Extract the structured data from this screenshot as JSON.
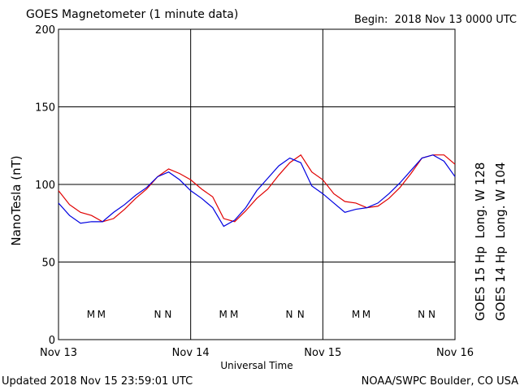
{
  "chart_data": {
    "type": "line",
    "title": "GOES Magnetometer (1 minute data)",
    "subtitle": "Begin:  2018 Nov 13 0000 UTC",
    "x_label": "Universal Time",
    "y_label": "NanoTesla (nT)",
    "footer_left": "Updated 2018 Nov 15 23:59:01 UTC",
    "footer_right": "NOAA/SWPC Boulder, CO USA",
    "x": [
      0,
      2,
      4,
      6,
      8,
      10,
      12,
      14,
      16,
      18,
      20,
      22,
      24,
      26,
      28,
      30,
      32,
      34,
      36,
      38,
      40,
      42,
      44,
      46,
      48,
      50,
      52,
      54,
      56,
      58,
      60,
      62,
      64,
      66,
      68,
      70,
      72
    ],
    "xlim": [
      0,
      72
    ],
    "xticks": [
      {
        "value": 0,
        "label": "Nov 13"
      },
      {
        "value": 24,
        "label": "Nov 14"
      },
      {
        "value": 48,
        "label": "Nov 15"
      },
      {
        "value": 72,
        "label": "Nov 16"
      }
    ],
    "ylim": [
      0,
      200
    ],
    "yticks": [
      0,
      50,
      100,
      150,
      200
    ],
    "grid": true,
    "series": [
      {
        "name": "GOES 15 Hp  Long. W 128",
        "color": "#e00000",
        "values": [
          96,
          87,
          82,
          80,
          76,
          78,
          84,
          91,
          97,
          105,
          110,
          107,
          103,
          97,
          92,
          78,
          76,
          83,
          91,
          97,
          106,
          114,
          119,
          108,
          103,
          94,
          89,
          88,
          85,
          86,
          91,
          98,
          107,
          117,
          119,
          119,
          113
        ]
      },
      {
        "name": "GOES 14 Hp  Long. W 104",
        "color": "#0000e0",
        "values": [
          88,
          80,
          75,
          76,
          76,
          82,
          87,
          93,
          98,
          105,
          108,
          103,
          96,
          91,
          85,
          73,
          77,
          85,
          96,
          104,
          112,
          117,
          114,
          99,
          94,
          88,
          82,
          84,
          85,
          88,
          94,
          101,
          109,
          117,
          119,
          115,
          105
        ]
      }
    ],
    "markers": [
      {
        "label": "M",
        "x": 5.9,
        "color": "#0000e0"
      },
      {
        "label": "M",
        "x": 7.8,
        "color": "#e00000"
      },
      {
        "label": "N",
        "x": 18.0,
        "color": "#0000e0"
      },
      {
        "label": "N",
        "x": 19.9,
        "color": "#e00000"
      },
      {
        "label": "M",
        "x": 29.9,
        "color": "#0000e0"
      },
      {
        "label": "M",
        "x": 31.9,
        "color": "#e00000"
      },
      {
        "label": "N",
        "x": 41.9,
        "color": "#0000e0"
      },
      {
        "label": "N",
        "x": 44.0,
        "color": "#e00000"
      },
      {
        "label": "M",
        "x": 54.0,
        "color": "#0000e0"
      },
      {
        "label": "M",
        "x": 55.9,
        "color": "#e00000"
      },
      {
        "label": "N",
        "x": 65.9,
        "color": "#0000e0"
      },
      {
        "label": "N",
        "x": 67.8,
        "color": "#e00000"
      }
    ]
  }
}
